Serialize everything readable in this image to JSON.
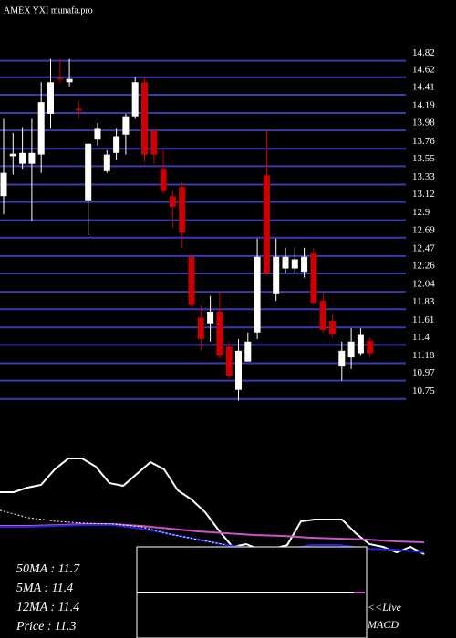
{
  "chart_data": {
    "type": "candlestick",
    "title": "AMEX YXI munafa.pro",
    "ylim": [
      10.5,
      15.55
    ],
    "yticks": [
      14.82,
      14.62,
      14.41,
      14.19,
      13.98,
      13.76,
      13.55,
      13.33,
      13.12,
      12.9,
      12.69,
      12.47,
      12.26,
      12.04,
      11.83,
      11.61,
      11.4,
      11.18,
      10.97,
      10.75
    ],
    "grid": true,
    "grid_color": "#3b3bb0",
    "up_color": "#ffffff",
    "down_color": "#cc0000",
    "open": [
      13.19,
      13.67,
      13.58,
      13.58,
      13.69,
      14.18,
      14.61,
      14.56,
      14.24,
      13.14,
      13.87,
      13.49,
      13.71,
      13.93,
      14.15,
      14.56,
      13.98,
      13.52,
      13.19,
      13.3,
      12.46,
      11.73,
      11.66,
      11.8,
      11.38,
      10.86,
      11.2,
      11.55,
      13.44,
      12.01,
      12.32,
      12.32,
      12.28,
      12.5,
      11.93,
      11.69,
      11.14,
      11.25,
      11.3,
      11.45
    ],
    "high": [
      14.12,
      13.95,
      14.02,
      14.12,
      14.56,
      14.84,
      14.84,
      14.84,
      14.34,
      13.82,
      14.07,
      13.74,
      14.01,
      14.18,
      14.62,
      14.62,
      13.98,
      13.74,
      13.25,
      13.36,
      12.48,
      11.88,
      11.99,
      12.04,
      11.44,
      11.47,
      11.55,
      12.68,
      13.99,
      12.68,
      12.57,
      12.57,
      12.57,
      12.57,
      12.04,
      11.77,
      11.44,
      11.6,
      11.6,
      11.49
    ],
    "low": [
      12.97,
      13.45,
      13.52,
      12.89,
      13.47,
      14.01,
      14.56,
      14.51,
      14.12,
      12.72,
      13.8,
      13.47,
      13.63,
      13.69,
      14.12,
      13.6,
      13.58,
      13.23,
      12.81,
      12.57,
      11.85,
      11.33,
      11.44,
      11.24,
      11.0,
      10.73,
      11.2,
      11.47,
      12.24,
      11.93,
      12.26,
      12.26,
      12.21,
      11.88,
      11.55,
      11.49,
      10.97,
      11.11,
      11.27,
      11.25
    ],
    "close": [
      13.47,
      13.7,
      13.71,
      13.71,
      14.32,
      14.56,
      14.6,
      14.6,
      14.22,
      13.82,
      14.01,
      13.69,
      13.91,
      14.15,
      14.56,
      13.69,
      13.69,
      13.25,
      13.06,
      12.75,
      11.88,
      11.47,
      11.8,
      11.27,
      11.03,
      11.33,
      11.44,
      12.46,
      12.26,
      12.46,
      12.46,
      12.43,
      12.46,
      11.91,
      11.58,
      11.53,
      11.33,
      11.44,
      11.52,
      11.3
    ],
    "indicator": {
      "ylim": [
        0,
        100
      ],
      "series": [
        {
          "color": "#ffffff",
          "values": [
            61.5,
            61.5,
            65.4,
            67.7,
            80.8,
            90,
            90,
            83.1,
            69.2,
            66.9,
            76.9,
            86.9,
            80.8,
            63.1,
            55.4,
            44.6,
            29.2,
            15.4,
            17.7,
            13.1,
            13.8,
            16.9,
            36.9,
            38.5,
            38.5,
            38.5,
            26.9,
            17.7,
            15.4,
            10.8,
            15.4,
            9.2
          ]
        },
        {
          "color": "#cc55cc",
          "values": [
            33.1,
            33.1,
            33.8,
            34.6,
            34.6,
            33.1,
            30.8,
            28.5,
            26.9,
            25.4,
            24.6,
            23.1,
            22.3,
            21.5,
            20,
            19.2
          ]
        },
        {
          "color": "#2222dd",
          "values": [
            32.3,
            32.3,
            33.1,
            33.8,
            33.8,
            30.8,
            26.2,
            21.5,
            16.9,
            13.8,
            12.3,
            16.9,
            16.9,
            13.8,
            13.1,
            10.8
          ]
        },
        {
          "color": "#ffffff",
          "dashed": true,
          "values": [
            46.2,
            40,
            36.9,
            35.4,
            34.6,
            32.3,
            26.2,
            21.5,
            16.9,
            null,
            null,
            null,
            null,
            null,
            null,
            null
          ]
        }
      ]
    },
    "ma_labels": [
      "50MA : 11.7",
      "5MA : 11.4",
      "12MA : 11.4",
      "Price  : 11.3"
    ],
    "live_label": "<<Live",
    "macd_label": "MACD"
  }
}
